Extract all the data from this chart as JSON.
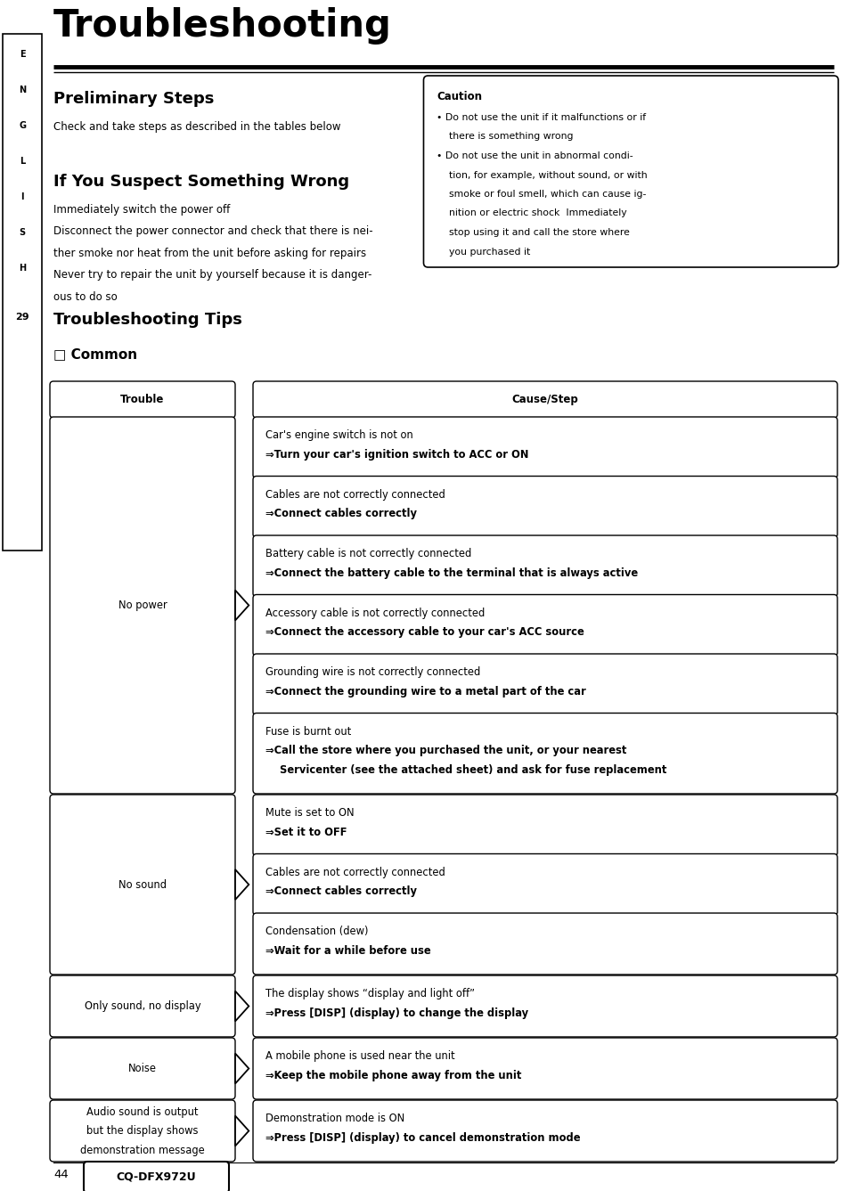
{
  "bg_color": "#ffffff",
  "page_width": 9.54,
  "page_height": 13.37,
  "title": "Troubleshooting",
  "section1_title": "Preliminary Steps",
  "section1_body": "Check and take steps as described in the tables below",
  "caution_title": "Caution",
  "caution_bullet1_line1": "Do not use the unit if it malfunctions or if",
  "caution_bullet1_line2": "there is something wrong",
  "caution_bullet2_lines": [
    "Do not use the unit in abnormal condi-",
    "tion, for example, without sound, or with",
    "smoke or foul smell, which can cause ig-",
    "nition or electric shock  Immediately",
    "stop using it and call the store where",
    "you purchased it"
  ],
  "section2_title": "If You Suspect Something Wrong",
  "section2_lines": [
    "Immediately switch the power off",
    "Disconnect the power connector and check that there is nei-",
    "ther smoke nor heat from the unit before asking for repairs",
    "Never try to repair the unit by yourself because it is danger-",
    "ous to do so"
  ],
  "section3_title": "Troubleshooting Tips",
  "section3_sub": "□ Common",
  "col_trouble": "Trouble",
  "col_cause": "Cause/Step",
  "rows": [
    {
      "trouble": "No power",
      "causes": [
        {
          "normal": "Car's engine switch is not on",
          "bold": "⇒Turn your car's ignition switch to ACC or ON"
        },
        {
          "normal": "Cables are not correctly connected",
          "bold": "⇒Connect cables correctly"
        },
        {
          "normal": "Battery cable is not correctly connected",
          "bold": "⇒Connect the battery cable to the terminal that is always active"
        },
        {
          "normal": "Accessory cable is not correctly connected",
          "bold": "⇒Connect the accessory cable to your car's ACC source"
        },
        {
          "normal": "Grounding wire is not correctly connected",
          "bold": "⇒Connect the grounding wire to a metal part of the car"
        },
        {
          "normal": "Fuse is burnt out",
          "bold": "⇒Call the store where you purchased the unit, or your nearest\n    Servicenter (see the attached sheet) and ask for fuse replacement"
        }
      ]
    },
    {
      "trouble": "No sound",
      "causes": [
        {
          "normal": "Mute is set to ON",
          "bold": "⇒Set it to OFF"
        },
        {
          "normal": "Cables are not correctly connected",
          "bold": "⇒Connect cables correctly"
        },
        {
          "normal": "Condensation (dew)",
          "bold": "⇒Wait for a while before use"
        }
      ]
    },
    {
      "trouble": "Only sound, no display",
      "causes": [
        {
          "normal": "The display shows “display and light off”",
          "bold": "⇒Press [DISP] (display) to change the display"
        }
      ]
    },
    {
      "trouble": "Noise",
      "causes": [
        {
          "normal": "A mobile phone is used near the unit",
          "bold": "⇒Keep the mobile phone away from the unit"
        }
      ]
    },
    {
      "trouble": "Audio sound is output\nbut the display shows\ndemonstration message",
      "causes": [
        {
          "normal": "Demonstration mode is ON",
          "bold": "⇒Press [DISP] (display) to cancel demonstration mode"
        }
      ]
    }
  ],
  "footer_page": "44",
  "footer_model": "CQ-DFX972U",
  "sidebar_chars": [
    "E",
    "N",
    "G",
    "L",
    "I",
    "S",
    "H",
    "29"
  ]
}
